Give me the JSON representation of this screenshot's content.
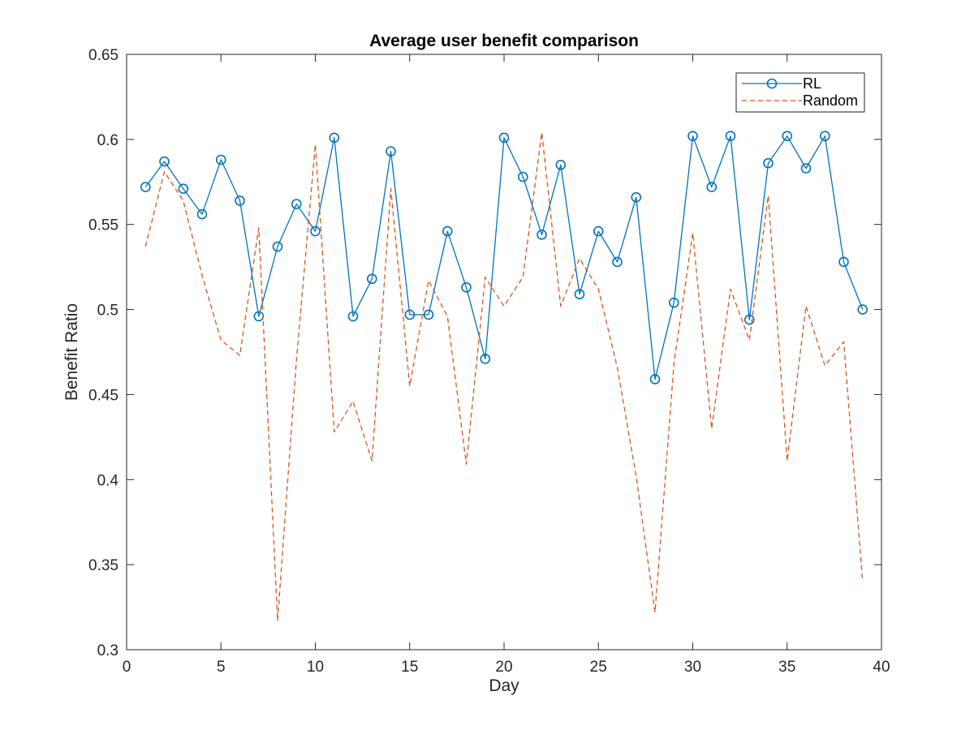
{
  "chart_data": {
    "type": "line",
    "title": "Average user benefit comparison",
    "xlabel": "Day",
    "ylabel": "Benefit Ratio",
    "xlim": [
      0,
      40
    ],
    "ylim": [
      0.3,
      0.65
    ],
    "xticks": [
      0,
      5,
      10,
      15,
      20,
      25,
      30,
      35,
      40
    ],
    "yticks": [
      0.3,
      0.35,
      0.4,
      0.45,
      0.5,
      0.55,
      0.6,
      0.65
    ],
    "xtick_labels": [
      "0",
      "5",
      "10",
      "15",
      "20",
      "25",
      "30",
      "35",
      "40"
    ],
    "ytick_labels": [
      "0.3",
      "0.35",
      "0.4",
      "0.45",
      "0.5",
      "0.55",
      "0.6",
      "0.65"
    ],
    "grid": false,
    "legend_position": "top-right",
    "x": [
      1,
      2,
      3,
      4,
      5,
      6,
      7,
      8,
      9,
      10,
      11,
      12,
      13,
      14,
      15,
      16,
      17,
      18,
      19,
      20,
      21,
      22,
      23,
      24,
      25,
      26,
      27,
      28,
      29,
      30,
      31,
      32,
      33,
      34,
      35,
      36,
      37,
      38,
      39
    ],
    "series": [
      {
        "name": "RL",
        "style": "solid-circle",
        "color": "#0072BD",
        "values": [
          0.572,
          0.587,
          0.571,
          0.556,
          0.588,
          0.564,
          0.496,
          0.537,
          0.562,
          0.546,
          0.601,
          0.496,
          0.518,
          0.593,
          0.497,
          0.497,
          0.546,
          0.513,
          0.471,
          0.601,
          0.578,
          0.544,
          0.585,
          0.509,
          0.546,
          0.528,
          0.566,
          0.459,
          0.504,
          0.602,
          0.572,
          0.602,
          0.494,
          0.586,
          0.602,
          0.583,
          0.602,
          0.528,
          0.5
        ]
      },
      {
        "name": "Random",
        "style": "dashed",
        "color": "#D95319",
        "values": [
          0.537,
          0.581,
          0.564,
          0.52,
          0.482,
          0.473,
          0.548,
          0.317,
          0.471,
          0.597,
          0.428,
          0.446,
          0.411,
          0.571,
          0.455,
          0.517,
          0.496,
          0.409,
          0.519,
          0.502,
          0.519,
          0.604,
          0.502,
          0.53,
          0.512,
          0.466,
          0.402,
          0.322,
          0.468,
          0.545,
          0.43,
          0.512,
          0.482,
          0.567,
          0.411,
          0.502,
          0.467,
          0.481,
          0.34
        ]
      }
    ]
  }
}
